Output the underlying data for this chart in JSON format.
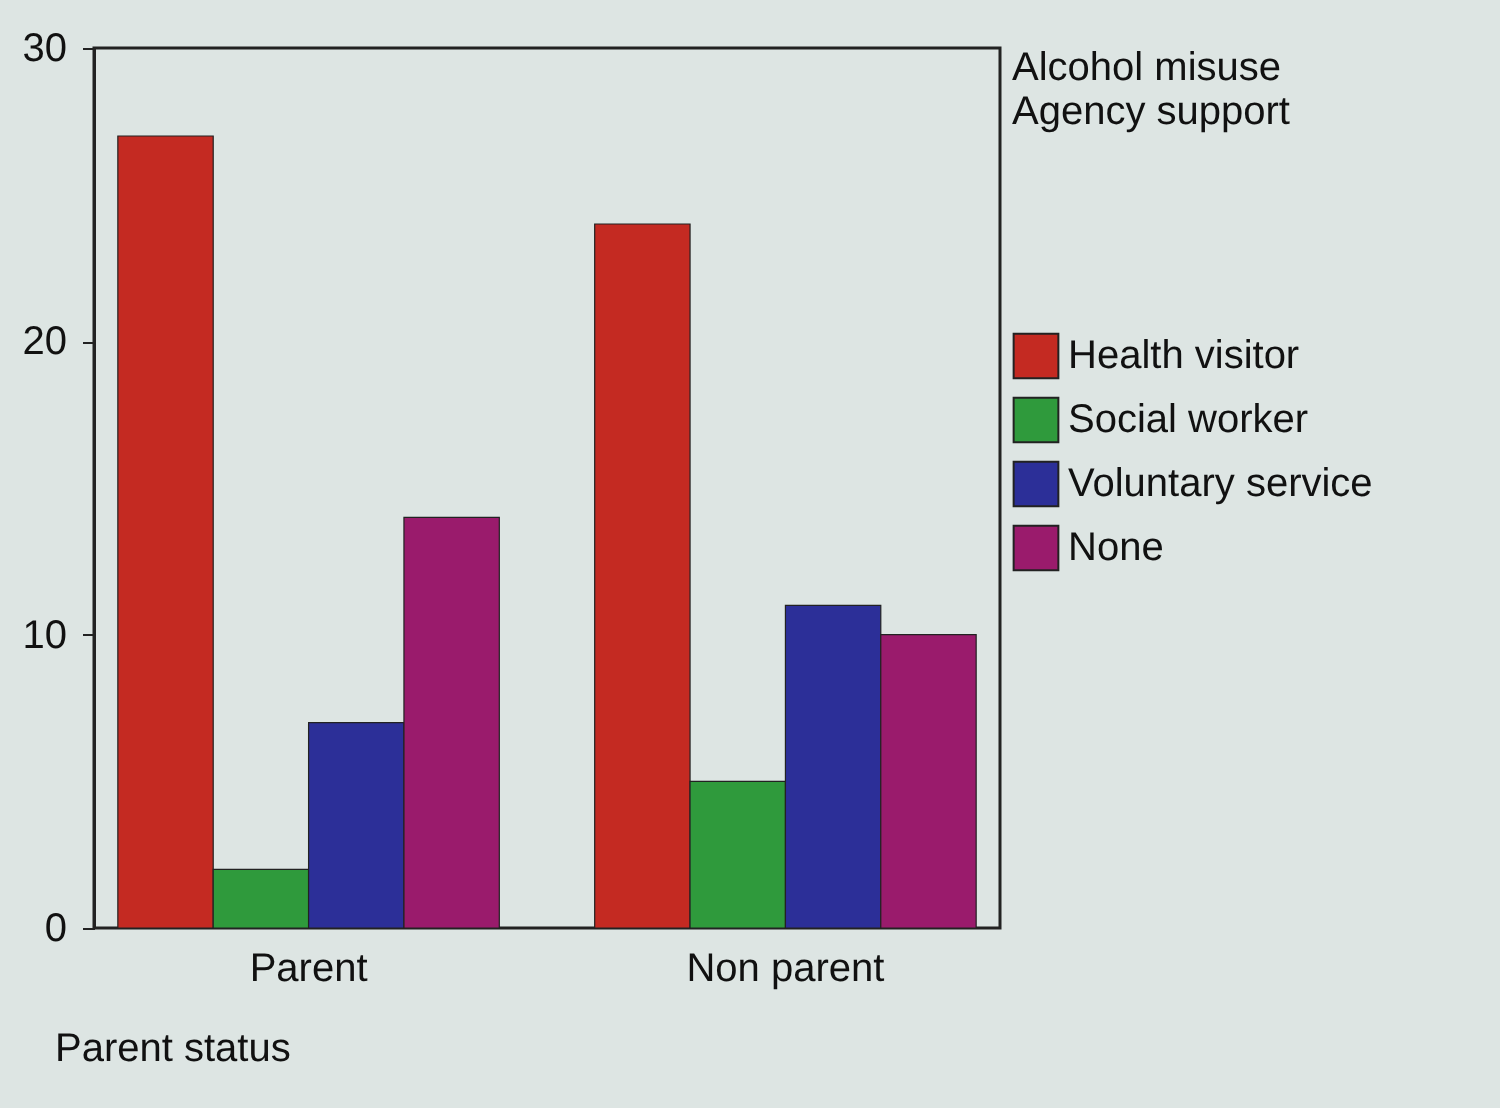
{
  "chart_data": {
    "type": "bar",
    "xlabel": "Parent status",
    "legend_title": "Alcohol misuse\nAgency support",
    "categories": [
      "Parent",
      "Non parent"
    ],
    "series": [
      {
        "name": "Health visitor",
        "color": "#c42a22",
        "values": [
          27,
          24
        ]
      },
      {
        "name": "Social worker",
        "color": "#2f9a3c",
        "values": [
          2,
          5
        ]
      },
      {
        "name": "Voluntary service",
        "color": "#2c2f98",
        "values": [
          7,
          11
        ]
      },
      {
        "name": "None",
        "color": "#9a1b6c",
        "values": [
          14,
          10
        ]
      }
    ],
    "ylim": [
      0,
      30
    ],
    "yticks": [
      0,
      10,
      20,
      30
    ],
    "grid": false,
    "legend": "right"
  }
}
